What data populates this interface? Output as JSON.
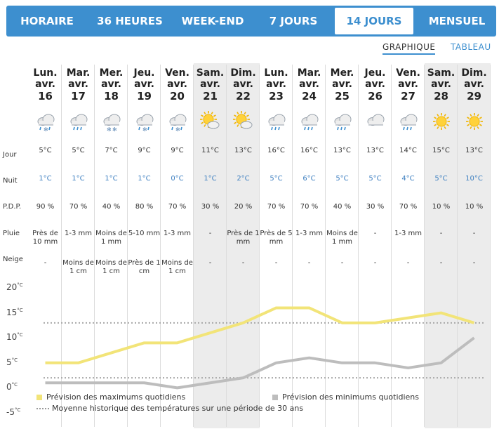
{
  "tabs": [
    {
      "label": "HORAIRE",
      "active": false
    },
    {
      "label": "36 HEURES",
      "active": false
    },
    {
      "label": "WEEK-END",
      "active": false
    },
    {
      "label": "7 JOURS",
      "active": false
    },
    {
      "label": "14 JOURS",
      "active": true
    },
    {
      "label": "MENSUEL",
      "active": false
    }
  ],
  "views": [
    {
      "label": "GRAPHIQUE",
      "active": true
    },
    {
      "label": "TABLEAU",
      "active": false
    }
  ],
  "row_labels": {
    "jour": "Jour",
    "nuit": "Nuit",
    "pdp": "P.D.P.",
    "pluie": "Pluie",
    "neige": "Neige"
  },
  "days": [
    {
      "dow": "Lun.",
      "month": "avr.",
      "num": "16",
      "weekend": false,
      "icon": "snow-rain-cloud-icon",
      "day": "5°C",
      "night": "1°C",
      "pdp": "90 %",
      "rain": "Près de 10 mm",
      "snow": "-"
    },
    {
      "dow": "Mar.",
      "month": "avr.",
      "num": "17",
      "weekend": false,
      "icon": "rain-cloud-icon",
      "day": "5°C",
      "night": "1°C",
      "pdp": "70 %",
      "rain": "1-3 mm",
      "snow": "Moins de 1 cm"
    },
    {
      "dow": "Mer.",
      "month": "avr.",
      "num": "18",
      "weekend": false,
      "icon": "snow-cloud-icon",
      "day": "7°C",
      "night": "1°C",
      "pdp": "40 %",
      "rain": "Moins de 1 mm",
      "snow": "Moins de 1 cm"
    },
    {
      "dow": "Jeu.",
      "month": "avr.",
      "num": "19",
      "weekend": false,
      "icon": "snow-rain-cloud-icon",
      "day": "9°C",
      "night": "1°C",
      "pdp": "80 %",
      "rain": "5-10 mm",
      "snow": "Près de 1 cm"
    },
    {
      "dow": "Ven.",
      "month": "avr.",
      "num": "20",
      "weekend": false,
      "icon": "snow-rain-cloud-icon",
      "day": "9°C",
      "night": "0°C",
      "pdp": "70 %",
      "rain": "1-3 mm",
      "snow": "Moins de 1 cm"
    },
    {
      "dow": "Sam.",
      "month": "avr.",
      "num": "21",
      "weekend": true,
      "icon": "sun-cloud-icon",
      "day": "11°C",
      "night": "1°C",
      "pdp": "30 %",
      "rain": "-",
      "snow": "-"
    },
    {
      "dow": "Dim.",
      "month": "avr.",
      "num": "22",
      "weekend": true,
      "icon": "sun-cloud-icon",
      "day": "13°C",
      "night": "2°C",
      "pdp": "20 %",
      "rain": "Près de 1 mm",
      "snow": "-"
    },
    {
      "dow": "Lun.",
      "month": "avr.",
      "num": "23",
      "weekend": false,
      "icon": "rain-cloud-icon",
      "day": "16°C",
      "night": "5°C",
      "pdp": "70 %",
      "rain": "Près de 5 mm",
      "snow": "-"
    },
    {
      "dow": "Mar.",
      "month": "avr.",
      "num": "24",
      "weekend": false,
      "icon": "rain-cloud-icon",
      "day": "16°C",
      "night": "6°C",
      "pdp": "70 %",
      "rain": "1-3 mm",
      "snow": "-"
    },
    {
      "dow": "Mer.",
      "month": "avr.",
      "num": "25",
      "weekend": false,
      "icon": "rain-cloud-icon",
      "day": "13°C",
      "night": "5°C",
      "pdp": "40 %",
      "rain": "Moins de 1 mm",
      "snow": "-"
    },
    {
      "dow": "Jeu.",
      "month": "avr.",
      "num": "26",
      "weekend": false,
      "icon": "cloud-icon",
      "day": "13°C",
      "night": "5°C",
      "pdp": "30 %",
      "rain": "-",
      "snow": "-"
    },
    {
      "dow": "Ven.",
      "month": "avr.",
      "num": "27",
      "weekend": false,
      "icon": "rain-cloud-icon",
      "day": "14°C",
      "night": "4°C",
      "pdp": "70 %",
      "rain": "1-3 mm",
      "snow": "-"
    },
    {
      "dow": "Sam.",
      "month": "avr.",
      "num": "28",
      "weekend": true,
      "icon": "sun-icon",
      "day": "15°C",
      "night": "5°C",
      "pdp": "10 %",
      "rain": "-",
      "snow": "-"
    },
    {
      "dow": "Dim.",
      "month": "avr.",
      "num": "29",
      "weekend": true,
      "icon": "sun-icon",
      "day": "13°C",
      "night": "10°C",
      "pdp": "10 %",
      "rain": "-",
      "snow": "-"
    }
  ],
  "y_ticks": [
    "20",
    "15",
    "10",
    "5",
    "0",
    "-5"
  ],
  "y_unit": "°C",
  "legend": {
    "max": "Prévision des maximums quotidiens",
    "min": "Prévision des minimums quotidiens",
    "avg": "Moyenne historique des températures sur une période de 30 ans"
  },
  "colors": {
    "accent": "#3d8fcf",
    "max_line": "#f2e478",
    "min_line": "#bdbdbd",
    "avg_line": "#a8a8a8",
    "weekend_bg": "#ececec"
  },
  "chart_data": {
    "type": "line",
    "x": [
      "16",
      "17",
      "18",
      "19",
      "20",
      "21",
      "22",
      "23",
      "24",
      "25",
      "26",
      "27",
      "28",
      "29"
    ],
    "series": [
      {
        "name": "Prévision des maximums quotidiens",
        "values": [
          5,
          5,
          7,
          9,
          9,
          11,
          13,
          16,
          16,
          13,
          13,
          14,
          15,
          13
        ]
      },
      {
        "name": "Prévision des minimums quotidiens",
        "values": [
          1,
          1,
          1,
          1,
          0,
          1,
          2,
          5,
          6,
          5,
          5,
          4,
          5,
          10
        ]
      },
      {
        "name": "Moyenne historique des températures sur une période de 30 ans",
        "values": [
          13,
          13,
          13,
          13,
          13,
          13,
          13,
          13,
          13,
          13,
          13,
          13,
          13,
          13
        ]
      },
      {
        "name": "Moyenne historique des températures sur une période de 30 ans",
        "values": [
          2,
          2,
          2,
          2,
          2,
          2,
          2,
          2,
          2,
          2,
          2,
          2,
          2,
          2
        ]
      }
    ],
    "ylim": [
      -5,
      20
    ],
    "grid": false,
    "legend_position": "bottom"
  }
}
